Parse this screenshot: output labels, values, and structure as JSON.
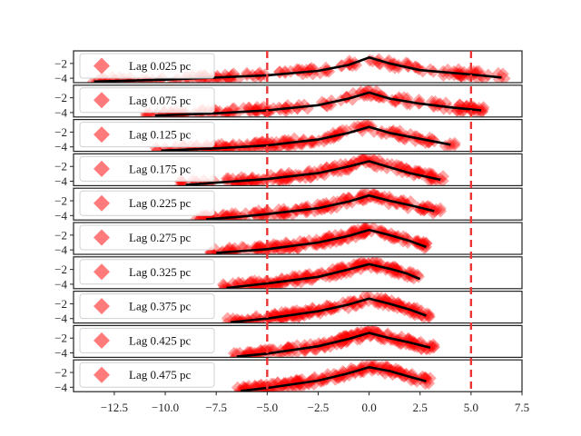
{
  "chart_data": {
    "type": "scatter",
    "x_range": [
      -14.5,
      7.5
    ],
    "ylim": [
      -4.6,
      -0.3
    ],
    "x_ticks": [
      -12.5,
      -10.0,
      -7.5,
      -5.0,
      -2.5,
      0.0,
      2.5,
      5.0,
      7.5
    ],
    "x_tick_labels": [
      "−12.5",
      "−10.0",
      "−7.5",
      "−5.0",
      "−2.5",
      "0.0",
      "2.5",
      "5.0",
      "7.5"
    ],
    "y_ticks": [
      -2,
      -4
    ],
    "y_tick_labels": [
      "−2",
      "−4"
    ],
    "vlines": [
      -5.0,
      5.0
    ],
    "legend_position": "upper-left",
    "colors": {
      "points": "#ff0000",
      "legend_marker": "#ff7a7a",
      "fit": "#000000",
      "vline": "#ee3333"
    },
    "panels": [
      {
        "label": "Lag 0.025 pc",
        "xmin": -13.7,
        "xmax": 6.7,
        "fit": [
          [
            -13.5,
            -4.45
          ],
          [
            -10,
            -4.2
          ],
          [
            -7.5,
            -3.9
          ],
          [
            -5,
            -3.6
          ],
          [
            -2.5,
            -3.0
          ],
          [
            -1,
            -2.2
          ],
          [
            0,
            -1.2
          ],
          [
            1,
            -2.0
          ],
          [
            2.5,
            -2.9
          ],
          [
            5,
            -3.5
          ],
          [
            6.5,
            -3.9
          ]
        ]
      },
      {
        "label": "Lag 0.075 pc",
        "xmin": -11.0,
        "xmax": 5.8,
        "fit": [
          [
            -10.5,
            -4.4
          ],
          [
            -7.5,
            -4.1
          ],
          [
            -5,
            -3.7
          ],
          [
            -2.5,
            -3.0
          ],
          [
            -1,
            -2.1
          ],
          [
            0,
            -1.3
          ],
          [
            1,
            -2.1
          ],
          [
            2.5,
            -2.8
          ],
          [
            4,
            -3.3
          ],
          [
            5.5,
            -3.7
          ]
        ]
      },
      {
        "label": "Lag 0.125 pc",
        "xmin": -10.5,
        "xmax": 4.4,
        "fit": [
          [
            -10.2,
            -4.5
          ],
          [
            -7.5,
            -4.2
          ],
          [
            -5,
            -3.8
          ],
          [
            -2.5,
            -3.0
          ],
          [
            -1,
            -2.1
          ],
          [
            0,
            -1.3
          ],
          [
            1,
            -2.1
          ],
          [
            2.5,
            -2.9
          ],
          [
            4,
            -3.7
          ]
        ]
      },
      {
        "label": "Lag 0.175 pc",
        "xmin": -9.5,
        "xmax": 3.8,
        "fit": [
          [
            -9,
            -4.5
          ],
          [
            -7.5,
            -4.2
          ],
          [
            -5,
            -3.7
          ],
          [
            -2.5,
            -2.9
          ],
          [
            -1,
            -2.0
          ],
          [
            0,
            -1.3
          ],
          [
            1,
            -2.1
          ],
          [
            2,
            -2.9
          ],
          [
            3.5,
            -3.8
          ]
        ]
      },
      {
        "label": "Lag 0.225 pc",
        "xmin": -8.5,
        "xmax": 3.5,
        "fit": [
          [
            -8,
            -4.5
          ],
          [
            -6.5,
            -4.2
          ],
          [
            -5,
            -3.8
          ],
          [
            -2.5,
            -3.0
          ],
          [
            -1,
            -2.1
          ],
          [
            0,
            -1.3
          ],
          [
            1,
            -2.0
          ],
          [
            2,
            -2.6
          ],
          [
            3.2,
            -3.4
          ]
        ]
      },
      {
        "label": "Lag 0.275 pc",
        "xmin": -7.8,
        "xmax": 3.0,
        "fit": [
          [
            -7.5,
            -4.4
          ],
          [
            -5,
            -3.9
          ],
          [
            -2.5,
            -3.0
          ],
          [
            -1,
            -2.1
          ],
          [
            0,
            -1.3
          ],
          [
            1,
            -2.0
          ],
          [
            2,
            -2.8
          ],
          [
            2.8,
            -3.6
          ]
        ]
      },
      {
        "label": "Lag 0.325 pc",
        "xmin": -7.3,
        "xmax": 2.7,
        "fit": [
          [
            -7,
            -4.5
          ],
          [
            -5,
            -3.9
          ],
          [
            -2.5,
            -3.0
          ],
          [
            -1,
            -2.0
          ],
          [
            0,
            -1.3
          ],
          [
            1,
            -1.9
          ],
          [
            1.8,
            -2.5
          ],
          [
            2.5,
            -3.3
          ]
        ]
      },
      {
        "label": "Lag 0.375 pc",
        "xmin": -7.0,
        "xmax": 3.0,
        "fit": [
          [
            -6.8,
            -4.5
          ],
          [
            -5,
            -4.0
          ],
          [
            -2.5,
            -3.0
          ],
          [
            -1,
            -2.1
          ],
          [
            0,
            -1.3
          ],
          [
            1,
            -2.0
          ],
          [
            2,
            -2.8
          ],
          [
            2.8,
            -3.6
          ]
        ]
      },
      {
        "label": "Lag 0.425 pc",
        "xmin": -6.8,
        "xmax": 3.2,
        "fit": [
          [
            -6.5,
            -4.5
          ],
          [
            -5,
            -4.1
          ],
          [
            -2.5,
            -3.1
          ],
          [
            -1,
            -2.1
          ],
          [
            0,
            -1.3
          ],
          [
            1,
            -2.0
          ],
          [
            2,
            -2.6
          ],
          [
            3,
            -3.3
          ]
        ]
      },
      {
        "label": "Lag 0.475 pc",
        "xmin": -6.6,
        "xmax": 3.0,
        "fit": [
          [
            -6.3,
            -4.5
          ],
          [
            -5,
            -4.1
          ],
          [
            -2.5,
            -3.1
          ],
          [
            -1,
            -2.1
          ],
          [
            0,
            -1.3
          ],
          [
            1,
            -1.8
          ],
          [
            2,
            -2.6
          ],
          [
            2.8,
            -3.2
          ]
        ]
      }
    ]
  }
}
